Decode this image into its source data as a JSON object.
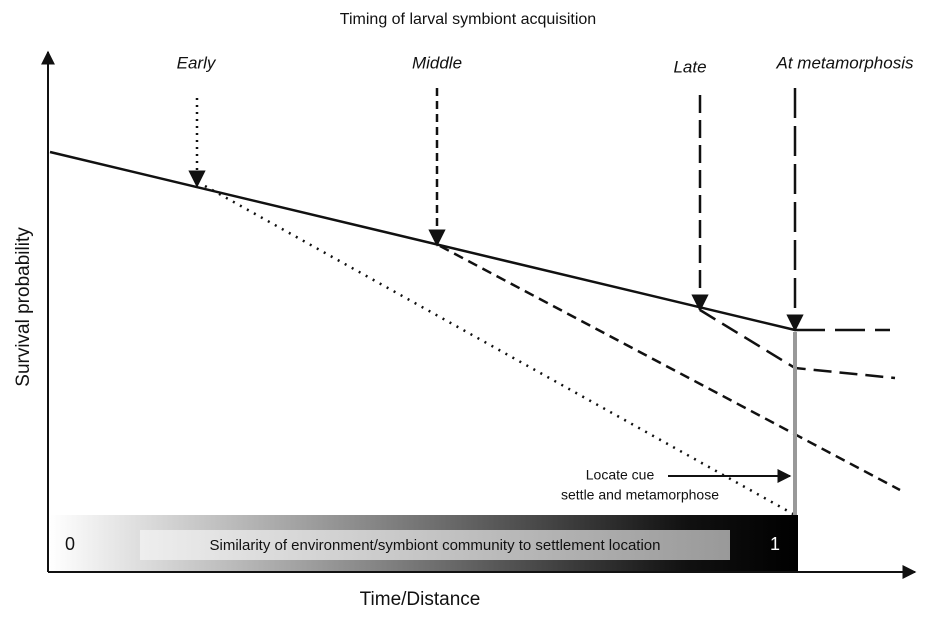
{
  "title": "Timing of larval symbiont acquisition",
  "y_axis_label": "Survival probability",
  "x_axis_label": "Time/Distance",
  "stages": [
    "Early",
    "Middle",
    "Late",
    "At metamorphosis"
  ],
  "annotation": {
    "line1": "Locate cue",
    "line2": "settle and metamorphose"
  },
  "gradient_bar": {
    "label": "Similarity of environment/symbiont community to settlement location",
    "start": "0",
    "end": "1"
  }
}
